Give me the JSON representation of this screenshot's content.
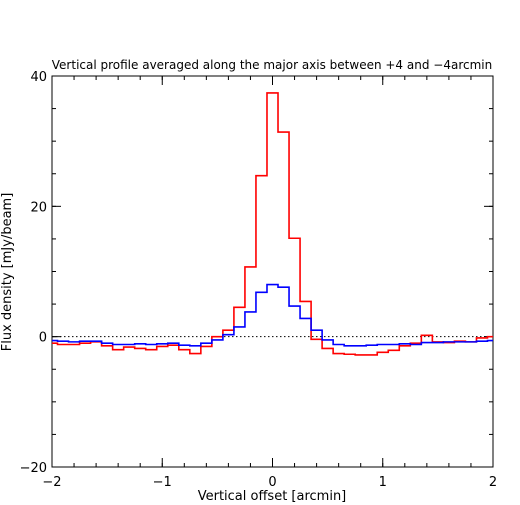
{
  "chart_data": {
    "type": "line",
    "title": "Vertical profile averaged along the major axis between +4 and −4arcmin",
    "xlabel": "Vertical offset [arcmin]",
    "ylabel": "Flux density [mJy/beam]",
    "xlim": [
      -2,
      2
    ],
    "ylim": [
      -20,
      40
    ],
    "x_ticks": [
      -2,
      -1,
      0,
      1,
      2
    ],
    "x_tick_labels": [
      "−2",
      "−1",
      "0",
      "1",
      "2"
    ],
    "y_ticks": [
      -20,
      0,
      20,
      40
    ],
    "y_tick_labels": [
      "−20",
      "0",
      "20",
      "40"
    ],
    "step": 0.1,
    "reference_line": {
      "y": 0,
      "style": "dotted"
    },
    "series": [
      {
        "color": "#ff0000",
        "drawstyle": "steps-mid",
        "x": [
          -2.0,
          -1.9,
          -1.8,
          -1.7,
          -1.6,
          -1.5,
          -1.4,
          -1.3,
          -1.2,
          -1.1,
          -1.0,
          -0.9,
          -0.8,
          -0.7,
          -0.6,
          -0.5,
          -0.4,
          -0.3,
          -0.2,
          -0.1,
          0.0,
          0.1,
          0.2,
          0.3,
          0.4,
          0.5,
          0.6,
          0.7,
          0.8,
          0.9,
          1.0,
          1.1,
          1.2,
          1.3,
          1.4,
          1.5,
          1.6,
          1.7,
          1.8,
          1.9,
          2.0
        ],
        "y": [
          -1.0,
          -1.2,
          -1.2,
          -1.0,
          -0.8,
          -1.4,
          -2.0,
          -1.6,
          -1.8,
          -2.0,
          -1.5,
          -1.3,
          -2.0,
          -2.6,
          -1.5,
          0.0,
          1.0,
          4.5,
          10.7,
          24.7,
          37.4,
          31.4,
          15.1,
          5.4,
          -0.4,
          -1.8,
          -2.6,
          -2.7,
          -2.8,
          -2.8,
          -2.4,
          -2.1,
          -1.4,
          -1.0,
          0.2,
          -0.8,
          -0.9,
          -0.7,
          -0.8,
          -0.2,
          0.0
        ]
      },
      {
        "color": "#0000ff",
        "drawstyle": "steps-mid",
        "x": [
          -2.0,
          -1.9,
          -1.8,
          -1.7,
          -1.6,
          -1.5,
          -1.4,
          -1.3,
          -1.2,
          -1.1,
          -1.0,
          -0.9,
          -0.8,
          -0.7,
          -0.6,
          -0.5,
          -0.4,
          -0.3,
          -0.2,
          -0.1,
          0.0,
          0.1,
          0.2,
          0.3,
          0.4,
          0.5,
          0.6,
          0.7,
          0.8,
          0.9,
          1.0,
          1.1,
          1.2,
          1.3,
          1.4,
          1.5,
          1.6,
          1.7,
          1.8,
          1.9,
          2.0
        ],
        "y": [
          -0.6,
          -0.7,
          -0.8,
          -0.7,
          -0.7,
          -1.0,
          -1.2,
          -1.2,
          -1.1,
          -1.2,
          -1.1,
          -1.0,
          -1.3,
          -1.4,
          -1.0,
          -0.5,
          0.3,
          1.5,
          3.8,
          6.8,
          8.0,
          7.6,
          4.7,
          2.8,
          1.0,
          -0.5,
          -1.2,
          -1.4,
          -1.4,
          -1.3,
          -1.2,
          -1.2,
          -1.1,
          -1.2,
          -0.9,
          -0.9,
          -0.8,
          -0.8,
          -0.8,
          -0.7,
          -0.6
        ]
      }
    ]
  }
}
